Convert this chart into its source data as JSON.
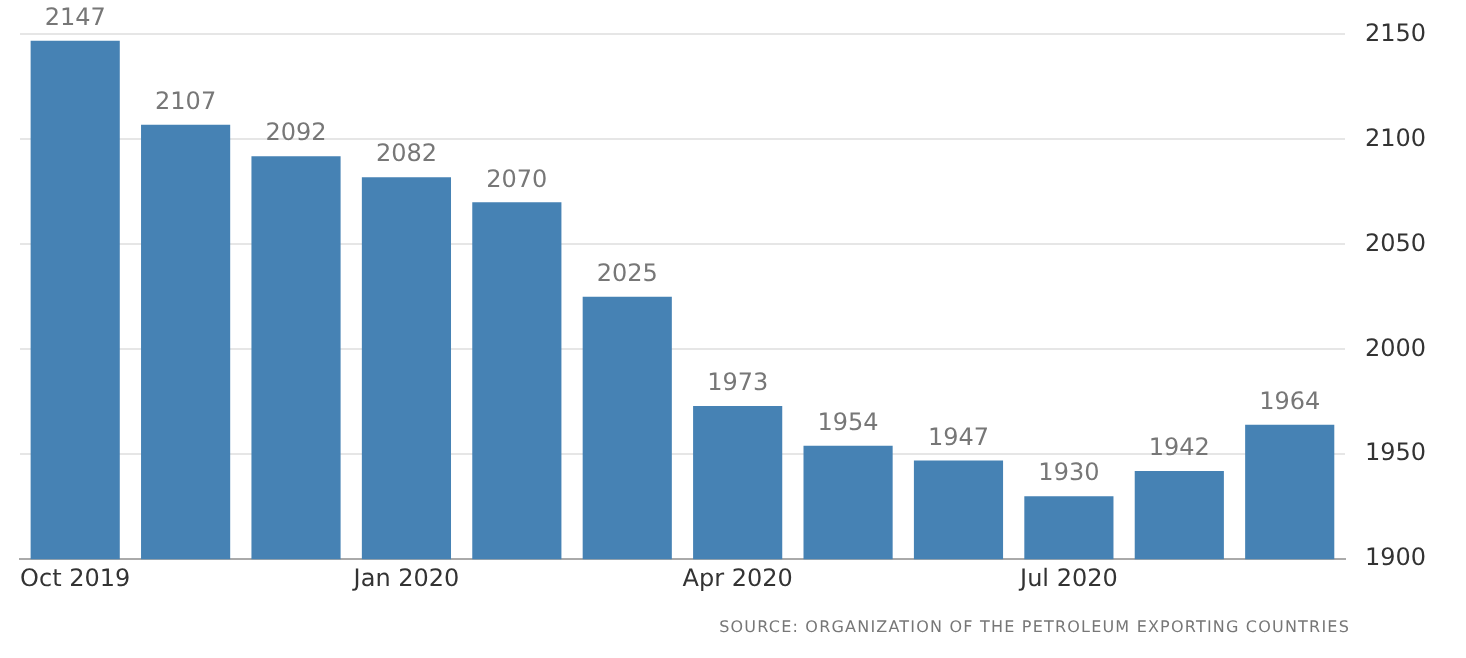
{
  "chart_data": {
    "type": "bar",
    "categories": [
      "Oct 2019",
      null,
      null,
      "Jan 2020",
      null,
      null,
      "Apr 2020",
      null,
      null,
      "Jul 2020",
      null,
      null
    ],
    "values": [
      2147,
      2107,
      2092,
      2082,
      2070,
      2025,
      1973,
      1954,
      1947,
      1930,
      1942,
      1964
    ],
    "color": "#4682b4",
    "ylim": [
      1900,
      2150
    ],
    "yticks": [
      1900,
      1950,
      2000,
      2050,
      2100,
      2150
    ],
    "grid": "y",
    "data_labels": true,
    "annotations": [
      "SOURCE: ORGANIZATION OF THE PETROLEUM EXPORTING COUNTRIES"
    ]
  }
}
